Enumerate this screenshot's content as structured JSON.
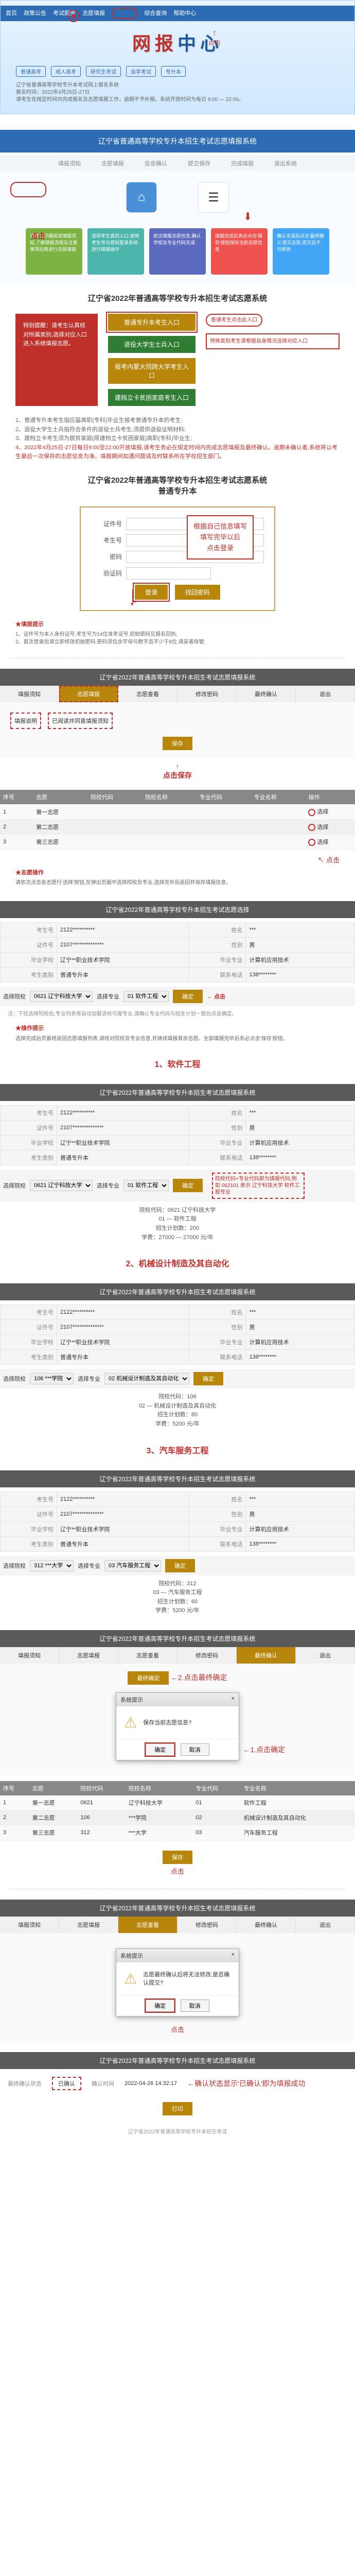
{
  "banner": {
    "menu": [
      "首页",
      "政策公告",
      "考试服务",
      "志愿填报",
      "综合查询",
      "帮助中心",
      "联系我们"
    ],
    "title_a": "网报",
    "title_b": "中心",
    "click_label": "点击",
    "tabs": [
      "普通高考",
      "成人高考",
      "研究生考试",
      "自学考试",
      "专升本",
      "其他"
    ],
    "subtext": "辽宁省普通高等学校专升本考试网上报名系统\n报名时间：2022年4月25日-27日\n请考生在规定时间内完成报名及志愿填报工作，逾期不予补报。系统开放时间为每日 9:00 — 22:00。"
  },
  "flow": {
    "header_title": "辽宁省普通高等学校专升本招生考试志愿填报系统",
    "steps": [
      "填报须知",
      "志愿填报",
      "信息确认",
      "提交保存",
      "完成填报",
      "退出系统"
    ],
    "label_click": "点击",
    "cards": [
      "请考生仔细阅读填报须知,了解填报流程及注意事项后再进行志愿填报",
      "选择考生类别入口,使用考生号与密码登录系统进行填报操作",
      "依次填报志愿信息,确认学校及专业代码无误",
      "填报完成后务必点击'保存'按钮保存当前志愿信息",
      "确认无误后点击'最终确认'提交志愿,提交后不可修改"
    ]
  },
  "entry": {
    "title": "辽宁省2022年普通高等学校专升本招生考试志愿系统",
    "left_text": "特别提醒：请考生认真核对所属类别,选择对应入口进入系统填报志愿。",
    "buttons": [
      "普通专升本考生入口",
      "退役大学生士兵入口",
      "报考内蒙大同跨大学考生入口",
      "建档立卡贫困家庭考生入口"
    ],
    "side_top": "普通考生点击此入口",
    "side_box": "特殊类别考生请根据自身情况选择对应入口",
    "notice_items": [
      "1、普通专升本考生指应届高职(专科)毕业生报考普通专升本的考生;",
      "2、退役大学生士兵指符合条件的退役士兵考生,须提供退役证明材料;",
      "3、建档立卡考生须为脱贫家庭(原建档立卡贫困家庭)高职(专科)毕业生;"
    ],
    "notice_red": "4、2022年4月25日-27日每日9:00至22:00开放填报,请考生务必在规定时间内完成志愿填报及最终确认。逾期未确认者,系统将以考生最后一次保存的志愿信息为准。填报期间如遇问题请及时联系所在学校招生部门。"
  },
  "login": {
    "sec_title": "辽宁省2022年普通高等学校专升本招生考试志愿系统\n普通专升本",
    "labels": {
      "id": "证件号",
      "exam": "考生号",
      "pwd": "密码",
      "code": "验证码"
    },
    "btn_login": "登录",
    "btn_reset": "找回密码",
    "overlay": "根据自己信息填写\n填写完毕以后\n点击登录",
    "tips_title": "★填报提示",
    "tips": [
      "1、证件号为本人身份证号,考生号为14位准考证号,初始密码见报名回执;",
      "2、首次登录后请立即修改初始密码,密码须包含字母与数字且不少于8位,请妥善保管;"
    ]
  },
  "tabsec": {
    "header": "辽宁省2022年普通高等学校专升本招生考试志愿填报系统",
    "tabs": [
      "填报须知",
      "志愿填报",
      "志愿查看",
      "修改密码",
      "最终确认",
      "退出"
    ],
    "body_label1": "填报说明",
    "body_label2": "已阅读并同意填报须知",
    "save_label": "点击保存"
  },
  "table1": {
    "headers": [
      "序号",
      "志愿",
      "院校代码",
      "院校名称",
      "专业代码",
      "专业名称",
      "操作"
    ],
    "rows": [
      [
        "1",
        "第一志愿",
        "",
        "",
        "",
        "",
        "选择"
      ],
      [
        "2",
        "第二志愿",
        "",
        "",
        "",
        "",
        "选择"
      ],
      [
        "3",
        "第三志愿",
        "",
        "",
        "",
        "",
        "选择"
      ]
    ],
    "click_label": "点击"
  },
  "section_ops": "★志愿操作",
  "ops_text": "请依次点击各志愿行'选择'按钮,在弹出页面中选择院校及专业,选择完毕后返回并保存填报信息。",
  "select_school": {
    "header": "辽宁省2022年普通高等学校专升本招生考试志愿选择",
    "labels": {
      "school": "选择院校",
      "major": "选择专业"
    },
    "school_val": "0621 辽宁科技大学",
    "major_val": "01 软件工程",
    "btn": "确定",
    "click": "点击",
    "note": "注：下拉选择院校后,专业列表将自动加载该校可报专业,请确认专业代码与招生计划一致后点击确定。",
    "tip_title": "★操作提示",
    "tip_text": "选择完成后页面将返回志愿填报列表,请核对院校及专业信息,并继续填报其余志愿。全部填报完毕后务必点击'保存'按钮。"
  },
  "majors": {
    "m1": {
      "title": "1、软件工程",
      "school_code": "院校代码：0621 辽宁科技大学",
      "major_line": "01 — 软件工程",
      "plan": "招生计划数：200",
      "fee": "学费：27000 — 27000 元/年",
      "redbox": "院校代码+专业代码即为填报代码,例如 062101 表示 辽宁科技大学 软件工程专业"
    },
    "m2": {
      "title": "2、机械设计制造及其自动化",
      "lines": [
        "院校代码：106",
        "02 — 机械设计制造及其自动化",
        "招生计划数：80",
        "学费：5200 元/年"
      ]
    },
    "m3": {
      "title": "3、汽车服务工程",
      "lines": [
        "院校代码：312",
        "03 — 汽车服务工程",
        "招生计划数：60",
        "学费：5200 元/年"
      ]
    }
  },
  "info_panel": {
    "rows": [
      [
        "考生号",
        "2122**********",
        "姓名",
        "***"
      ],
      [
        "证件号",
        "2107**************",
        "性别",
        "男"
      ],
      [
        "毕业学校",
        "辽宁**职业技术学院",
        "毕业专业",
        "计算机应用技术"
      ],
      [
        "考生类别",
        "普通专升本",
        "联系电话",
        "138********"
      ]
    ]
  },
  "confirm": {
    "step1": "←1.点击确定",
    "step2": "←2.点击最终确定",
    "click_red": "点击",
    "dialog_title": "系统提示",
    "dialog_msg": "保存当前志愿信息?",
    "ok": "确定",
    "cancel": "取消",
    "final_dialog_msg": "志愿最终确认后将无法修改,是否确认提交?"
  },
  "final": {
    "labels": [
      "最终确认状态",
      "确认时间"
    ],
    "values": [
      "已确认",
      "2022-04-26 14:32:17"
    ],
    "arrow_note": "←确认状态显示'已确认'即为填报成功"
  },
  "footer": "辽宁省2022年普通高等学校专升本招生考试"
}
